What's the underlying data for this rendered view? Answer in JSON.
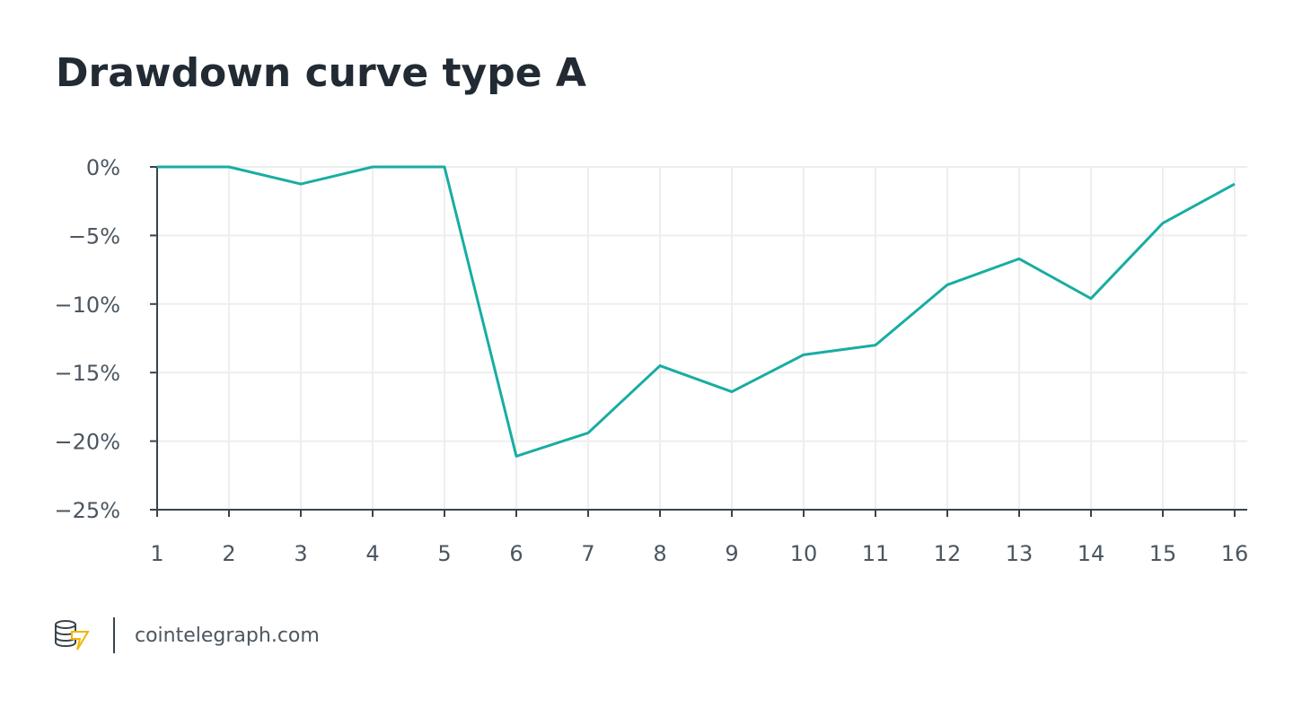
{
  "chart_data": {
    "type": "line",
    "title": "Drawdown curve type A",
    "x": [
      1,
      2,
      3,
      4,
      5,
      6,
      7,
      8,
      9,
      10,
      11,
      12,
      13,
      14,
      15,
      16
    ],
    "values": [
      0,
      0,
      -1.25,
      0,
      0,
      -21.1,
      -19.4,
      -14.5,
      -16.4,
      -13.7,
      -13.0,
      -8.6,
      -6.7,
      -9.6,
      -4.1,
      -1.25
    ],
    "color": "#18ada2",
    "xlim": [
      1,
      16
    ],
    "xticks": [
      1,
      2,
      3,
      4,
      5,
      6,
      7,
      8,
      9,
      10,
      11,
      12,
      13,
      14,
      15,
      16
    ],
    "ylim": [
      -25,
      0
    ],
    "yticks": [
      {
        "value": 0,
        "label": "0%"
      },
      {
        "value": -5,
        "label": "−5%"
      },
      {
        "value": -10,
        "label": "−10%"
      },
      {
        "value": -15,
        "label": "−15%"
      },
      {
        "value": -20,
        "label": "−20%"
      },
      {
        "value": -25,
        "label": "−25%"
      }
    ],
    "grid": true
  },
  "footer": {
    "source": "cointelegraph.com"
  }
}
